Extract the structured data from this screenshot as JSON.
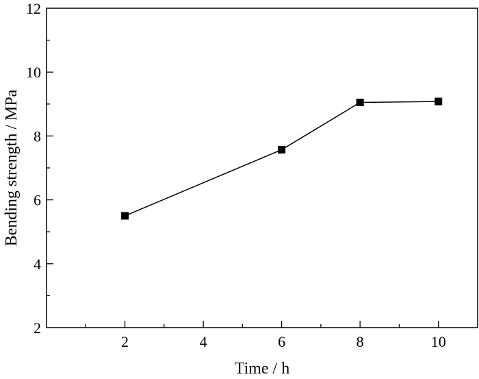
{
  "chart_data": {
    "type": "line",
    "xlabel": "Time / h",
    "ylabel": "Bending strength / MPa",
    "xlim": [
      0,
      11
    ],
    "ylim": [
      2,
      12
    ],
    "xticks": [
      2,
      4,
      6,
      8,
      10
    ],
    "yticks": [
      2,
      4,
      6,
      8,
      10,
      12
    ],
    "x_minor_step": 1,
    "y_minor_step": 1,
    "marker": "square",
    "grid": false,
    "series": [
      {
        "x": [
          2,
          6,
          8,
          10
        ],
        "y": [
          5.5,
          7.57,
          9.05,
          9.08
        ]
      }
    ],
    "colors": {
      "line": "#000000",
      "marker": "#000000",
      "axis": "#000000"
    }
  }
}
